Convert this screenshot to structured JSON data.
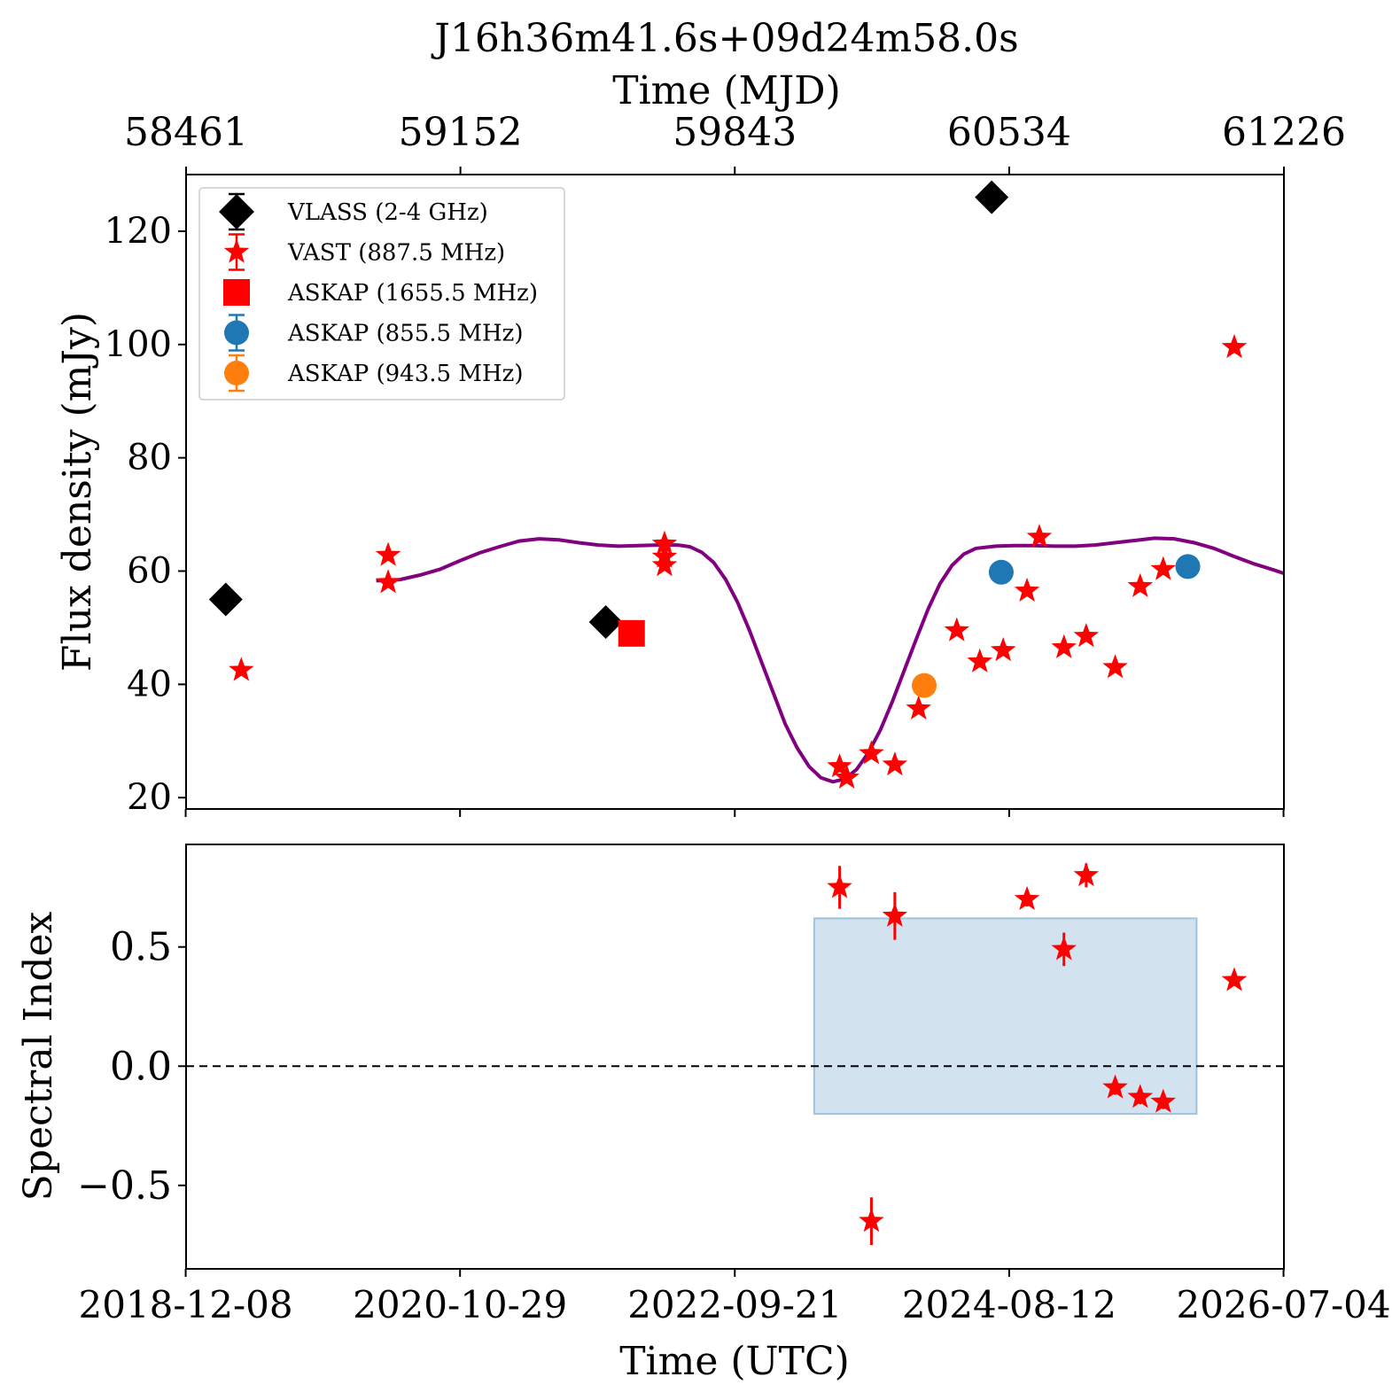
{
  "chart_data": [
    {
      "type": "scatter",
      "title": "J16h36m41.6s+09d24m58.0s",
      "top_axis": {
        "label": "Time (MJD)",
        "ticks": [
          58461,
          59152,
          59843,
          60534,
          61226
        ]
      },
      "xlim_mjd": [
        58461,
        61226
      ],
      "ylabel": "Flux density (mJy)",
      "ylim": [
        18,
        130
      ],
      "yticks": [
        20,
        40,
        60,
        80,
        100,
        120
      ],
      "legend_position": "top-left",
      "series": [
        {
          "name": "VLASS (2-4 GHz)",
          "marker": "diamond",
          "color": "#000000",
          "points": [
            {
              "mjd": 58561,
              "y": 55.0
            },
            {
              "mjd": 59518,
              "y": 51.0
            },
            {
              "mjd": 60490,
              "y": 126.0
            }
          ]
        },
        {
          "name": "VAST (887.5 MHz)",
          "marker": "star",
          "color": "#ff0000",
          "points": [
            {
              "mjd": 58600,
              "y": 42.5
            },
            {
              "mjd": 58970,
              "y": 62.8
            },
            {
              "mjd": 58970,
              "y": 58.0
            },
            {
              "mjd": 59666,
              "y": 64.8
            },
            {
              "mjd": 59666,
              "y": 62.5
            },
            {
              "mjd": 59666,
              "y": 61.0
            },
            {
              "mjd": 60107,
              "y": 25.5
            },
            {
              "mjd": 60125,
              "y": 23.5
            },
            {
              "mjd": 60187,
              "y": 27.8
            },
            {
              "mjd": 60246,
              "y": 25.8
            },
            {
              "mjd": 60306,
              "y": 35.7
            },
            {
              "mjd": 60402,
              "y": 49.5
            },
            {
              "mjd": 60460,
              "y": 44.0
            },
            {
              "mjd": 60519,
              "y": 46.0
            },
            {
              "mjd": 60579,
              "y": 56.5
            },
            {
              "mjd": 60610,
              "y": 66.0
            },
            {
              "mjd": 60672,
              "y": 46.5
            },
            {
              "mjd": 60728,
              "y": 48.5
            },
            {
              "mjd": 60801,
              "y": 43.0
            },
            {
              "mjd": 60864,
              "y": 57.3
            },
            {
              "mjd": 60922,
              "y": 60.3
            },
            {
              "mjd": 61101,
              "y": 99.5
            }
          ]
        },
        {
          "name": "ASKAP (1655.5 MHz)",
          "marker": "square",
          "color": "#ff0000",
          "points": [
            {
              "mjd": 59583,
              "y": 49.0
            }
          ]
        },
        {
          "name": "ASKAP (855.5 MHz)",
          "marker": "circle",
          "color": "#1f77b4",
          "points": [
            {
              "mjd": 60514,
              "y": 59.8
            },
            {
              "mjd": 60984,
              "y": 60.8
            }
          ]
        },
        {
          "name": "ASKAP (943.5 MHz)",
          "marker": "circle",
          "color": "#ff7f0e",
          "points": [
            {
              "mjd": 60320,
              "y": 39.8
            }
          ]
        }
      ],
      "model_curve": {
        "color": "#800080",
        "points": [
          [
            58940,
            58.3
          ],
          [
            59000,
            58.5
          ],
          [
            59050,
            59.3
          ],
          [
            59100,
            60.3
          ],
          [
            59150,
            61.8
          ],
          [
            59200,
            63.2
          ],
          [
            59250,
            64.3
          ],
          [
            59300,
            65.3
          ],
          [
            59350,
            65.7
          ],
          [
            59400,
            65.5
          ],
          [
            59450,
            65.0
          ],
          [
            59500,
            64.6
          ],
          [
            59550,
            64.4
          ],
          [
            59600,
            64.5
          ],
          [
            59650,
            64.6
          ],
          [
            59700,
            64.6
          ],
          [
            59730,
            64.3
          ],
          [
            59760,
            63.3
          ],
          [
            59790,
            61.5
          ],
          [
            59820,
            58.5
          ],
          [
            59850,
            54.5
          ],
          [
            59880,
            49.5
          ],
          [
            59910,
            44.0
          ],
          [
            59940,
            38.5
          ],
          [
            59970,
            33.0
          ],
          [
            60000,
            28.8
          ],
          [
            60030,
            25.5
          ],
          [
            60060,
            23.5
          ],
          [
            60090,
            22.8
          ],
          [
            60120,
            23.3
          ],
          [
            60150,
            25.0
          ],
          [
            60180,
            28.0
          ],
          [
            60210,
            32.0
          ],
          [
            60240,
            37.0
          ],
          [
            60270,
            42.5
          ],
          [
            60300,
            48.0
          ],
          [
            60330,
            53.3
          ],
          [
            60360,
            57.8
          ],
          [
            60390,
            61.0
          ],
          [
            60420,
            63.0
          ],
          [
            60450,
            64.0
          ],
          [
            60500,
            64.4
          ],
          [
            60550,
            64.5
          ],
          [
            60600,
            64.5
          ],
          [
            60650,
            64.4
          ],
          [
            60700,
            64.4
          ],
          [
            60750,
            64.6
          ],
          [
            60800,
            65.0
          ],
          [
            60850,
            65.4
          ],
          [
            60900,
            65.8
          ],
          [
            60950,
            65.7
          ],
          [
            61000,
            65.0
          ],
          [
            61050,
            64.0
          ],
          [
            61100,
            62.6
          ],
          [
            61150,
            61.3
          ],
          [
            61200,
            60.2
          ],
          [
            61226,
            59.6
          ]
        ]
      }
    },
    {
      "type": "scatter",
      "ylabel": "Spectral Index",
      "xlabel": "Time (UTC)",
      "xticks": [
        "2018-12-08",
        "2020-10-29",
        "2022-09-21",
        "2024-08-12",
        "2026-07-04"
      ],
      "ylim": [
        -0.85,
        0.93
      ],
      "yticks": [
        -0.5,
        0.0,
        0.5
      ],
      "ytick_labels": [
        "−0.5",
        "0.0",
        "0.5"
      ],
      "reference_line": {
        "y": 0.0,
        "style": "dashed",
        "color": "#000000"
      },
      "shaded_region": {
        "x_from": "2023-04-09",
        "x_to": "2025-11-27",
        "y_from": -0.2,
        "y_to": 0.62,
        "color": "#aecbe1"
      },
      "series": [
        {
          "name": "VAST (887.5 MHz)",
          "marker": "star",
          "color": "#ff0000",
          "points": [
            {
              "mjd": 60107,
              "y": 0.75,
              "err": 0.09
            },
            {
              "mjd": 60187,
              "y": -0.65,
              "err": 0.1
            },
            {
              "mjd": 60246,
              "y": 0.63,
              "err": 0.1
            },
            {
              "mjd": 60579,
              "y": 0.7,
              "err": 0.03
            },
            {
              "mjd": 60672,
              "y": 0.49,
              "err": 0.07
            },
            {
              "mjd": 60728,
              "y": 0.8,
              "err": 0.05
            },
            {
              "mjd": 60801,
              "y": -0.09,
              "err": 0.03
            },
            {
              "mjd": 60864,
              "y": -0.13,
              "err": 0.03
            },
            {
              "mjd": 60922,
              "y": -0.15,
              "err": 0.03
            },
            {
              "mjd": 61101,
              "y": 0.36,
              "err": 0.02
            }
          ]
        }
      ]
    }
  ]
}
